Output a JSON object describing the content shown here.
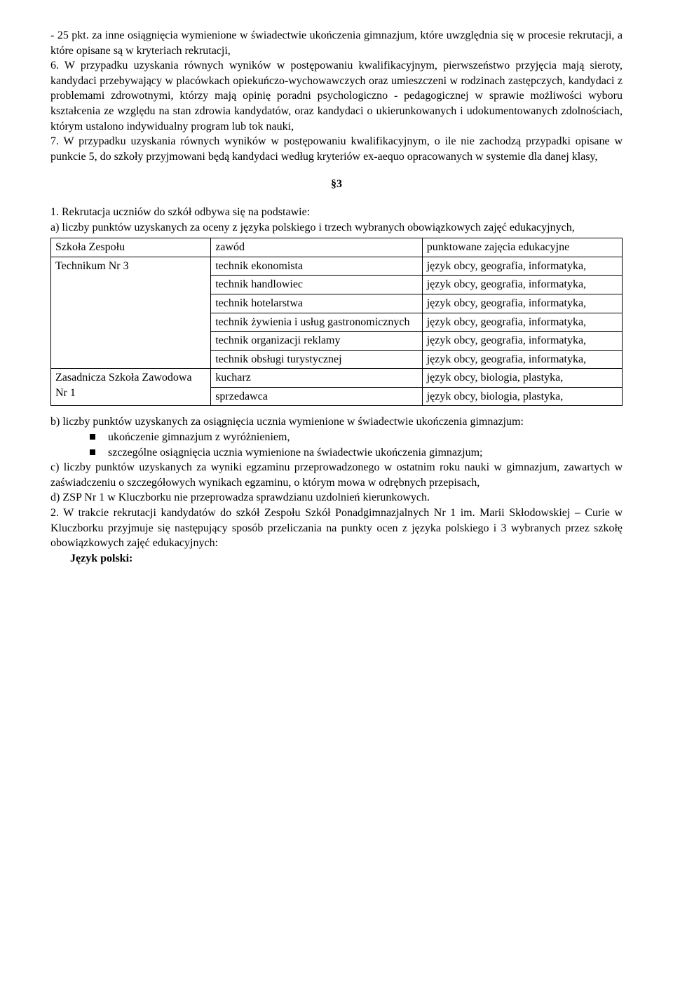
{
  "para1": "- 25 pkt. za inne osiągnięcia wymienione w świadectwie ukończenia gimnazjum, które uwzględnia się w procesie rekrutacji, a które opisane są w kryteriach rekrutacji,",
  "para2": "6. W przypadku uzyskania równych wyników w postępowaniu kwalifikacyjnym, pierwszeństwo przyjęcia mają sieroty, kandydaci przebywający w placówkach opiekuńczo-wychowawczych oraz umieszczeni w rodzinach zastępczych, kandydaci z problemami zdrowotnymi, którzy mają opinię poradni psychologiczno - pedagogicznej w sprawie możliwości wyboru kształcenia ze względu na stan zdrowia kandydatów, oraz kandydaci o ukierunkowanych i udokumentowanych zdolnościach, którym ustalono indywidualny program lub tok nauki,",
  "para3": "7. W przypadku uzyskania równych wyników w postępowaniu kwalifikacyjnym, o ile nie zachodzą przypadki opisane w punkcie 5, do szkoły przyjmowani będą kandydaci według kryteriów ex-aequo opracowanych w systemie dla danej klasy,",
  "section3": "§3",
  "para4": "1. Rekrutacja uczniów do szkół odbywa się na podstawie:",
  "para5": "a) liczby punktów uzyskanych za oceny z języka polskiego i trzech wybranych obowiązkowych zajęć edukacyjnych,",
  "table": {
    "head": {
      "c1": "Szkoła Zespołu",
      "c2": "zawód",
      "c3": "punktowane zajęcia edukacyjne"
    },
    "tech_label": "Technikum Nr 3",
    "tech_rows": [
      {
        "job": "technik ekonomista",
        "subj": "język obcy, geografia, informatyka,"
      },
      {
        "job": "technik handlowiec",
        "subj": "język obcy, geografia, informatyka,"
      },
      {
        "job": "technik hotelarstwa",
        "subj": "język obcy, geografia, informatyka,"
      },
      {
        "job": "technik żywienia i usług gastronomicznych",
        "subj": "język obcy, geografia, informatyka,"
      },
      {
        "job": "technik organizacji reklamy",
        "subj": "język obcy, geografia, informatyka,"
      },
      {
        "job": "technik obsługi turystycznej",
        "subj": "język obcy, geografia, informatyka,"
      }
    ],
    "zaw_label": "Zasadnicza Szkoła Zawodowa Nr 1",
    "zaw_rows": [
      {
        "job": "kucharz",
        "subj": "język obcy, biologia, plastyka,"
      },
      {
        "job": "sprzedawca",
        "subj": "język obcy, biologia, plastyka,"
      }
    ]
  },
  "para6": "b) liczby punktów uzyskanych za osiągnięcia ucznia wymienione w świadectwie ukończenia gimnazjum:",
  "bullet1": "ukończenie gimnazjum z wyróżnieniem,",
  "bullet2": "szczególne osiągnięcia ucznia wymienione na świadectwie ukończenia gimnazjum;",
  "para7": "c) liczby punktów uzyskanych za wyniki egzaminu przeprowadzonego w ostatnim roku nauki w gimnazjum, zawartych w zaświadczeniu o szczegółowych wynikach egzaminu, o którym mowa w odrębnych przepisach,",
  "para8": "d) ZSP Nr 1 w Kluczborku nie przeprowadza sprawdzianu uzdolnień kierunkowych.",
  "para9": "2. W trakcie rekrutacji kandydatów do szkół Zespołu Szkół Ponadgimnazjalnych Nr 1 im. Marii Skłodowskiej – Curie w Kluczborku przyjmuje się następujący sposób przeliczania na punkty ocen z języka polskiego i 3 wybranych przez szkołę obowiązkowych zajęć edukacyjnych:",
  "para10": "Język polski:"
}
